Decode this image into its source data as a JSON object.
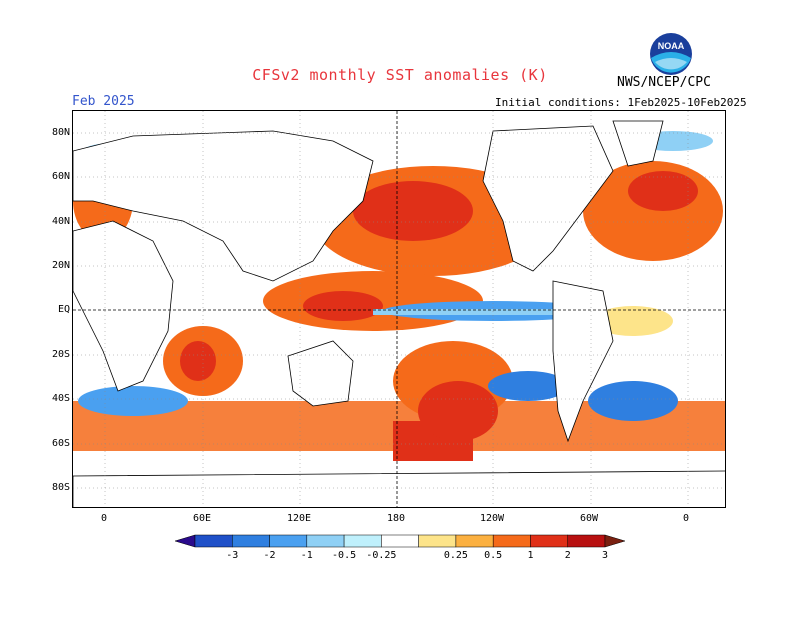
{
  "header": {
    "title": "CFSv2 monthly SST anomalies (K)",
    "month": "Feb 2025",
    "initial_conditions": "Initial conditions: 1Feb2025-10Feb2025",
    "agency": "NWS/NCEP/CPC",
    "logo_text": "NOAA"
  },
  "map": {
    "lat_labels": [
      "80N",
      "60N",
      "40N",
      "20N",
      "EQ",
      "20S",
      "40S",
      "60S",
      "80S"
    ],
    "lon_labels": [
      "0",
      "60E",
      "120E",
      "180",
      "120W",
      "60W",
      "0"
    ],
    "reference_lines": [
      "equator",
      "dateline"
    ]
  },
  "colorbar": {
    "tick_labels": [
      "-3",
      "-2",
      "-1",
      "-0.5",
      "-0.25",
      "0.25",
      "0.5",
      "1",
      "2",
      "3"
    ],
    "colors": [
      "#2a0a8c",
      "#1f50c8",
      "#2f7fe0",
      "#4aa0f0",
      "#8fd0f5",
      "#bff0fc",
      "#ffffff",
      "#fde48a",
      "#fbb040",
      "#f56a1a",
      "#e03018",
      "#b81010",
      "#7a2010"
    ]
  },
  "colors": {
    "title": "#e8353c",
    "month": "#3355cc",
    "warm": "#f56a1a",
    "cold": "#4aa0f0",
    "land": "#ffffff"
  }
}
